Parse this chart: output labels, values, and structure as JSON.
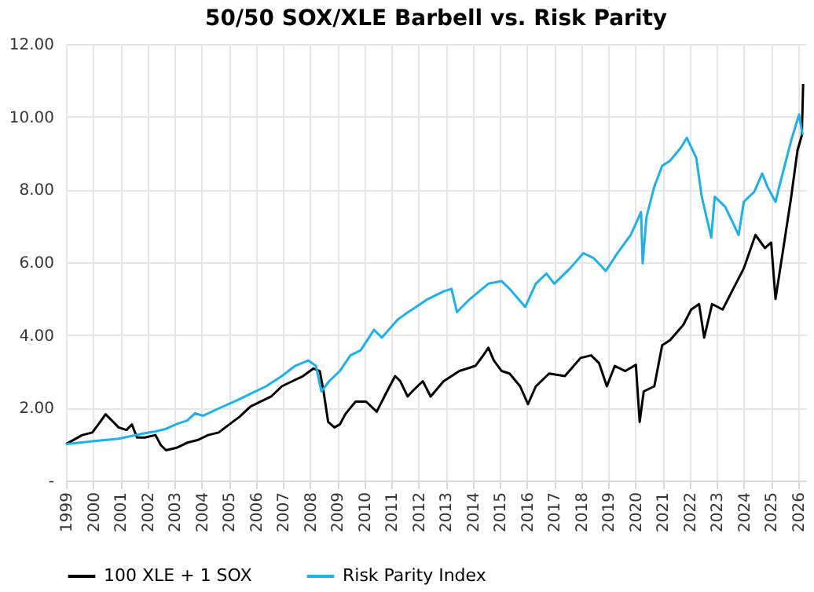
{
  "chart_data": {
    "type": "line",
    "title": "50/50 SOX/XLE Barbell vs. Risk Parity",
    "xlim": [
      1999,
      2026.3
    ],
    "xticks": [
      1999,
      2000,
      2001,
      2002,
      2003,
      2004,
      2005,
      2006,
      2007,
      2008,
      2009,
      2010,
      2011,
      2012,
      2013,
      2014,
      2015,
      2016,
      2017,
      2018,
      2019,
      2020,
      2021,
      2022,
      2023,
      2024,
      2025,
      2026
    ],
    "ylim": [
      0,
      12
    ],
    "yticks": [
      {
        "value": 0,
        "label": "-"
      },
      {
        "value": 2,
        "label": "2.00"
      },
      {
        "value": 4,
        "label": "4.00"
      },
      {
        "value": 6,
        "label": "6.00"
      },
      {
        "value": 8,
        "label": "8.00"
      },
      {
        "value": 10,
        "label": "10.00"
      },
      {
        "value": 12,
        "label": "12.00"
      }
    ],
    "grid": true,
    "legend": "bottom",
    "marker": "none",
    "line_style": "solid",
    "series": [
      {
        "name": "100 XLE + 1 SOX",
        "color": "#000000",
        "x": [
          1999.0,
          1999.6,
          1999.97,
          2000.26,
          2000.46,
          2000.65,
          2000.94,
          2001.23,
          2001.43,
          2001.62,
          2001.91,
          2002.3,
          2002.5,
          2002.69,
          2003.08,
          2003.47,
          2003.85,
          2004.24,
          2004.63,
          2005.02,
          2005.4,
          2005.8,
          2006.18,
          2006.57,
          2006.96,
          2007.35,
          2007.74,
          2008.13,
          2008.36,
          2008.5,
          2008.67,
          2008.9,
          2009.1,
          2009.3,
          2009.68,
          2010.07,
          2010.46,
          2010.84,
          2011.14,
          2011.33,
          2011.6,
          2011.77,
          2012.16,
          2012.45,
          2012.93,
          2013.51,
          2014.1,
          2014.39,
          2014.58,
          2014.78,
          2015.07,
          2015.36,
          2015.75,
          2016.04,
          2016.33,
          2016.82,
          2017.4,
          2017.98,
          2018.37,
          2018.66,
          2018.95,
          2019.24,
          2019.63,
          2020.02,
          2020.16,
          2020.31,
          2020.7,
          2020.99,
          2021.28,
          2021.77,
          2022.06,
          2022.35,
          2022.54,
          2022.83,
          2023.22,
          2023.61,
          2024.0,
          2024.43,
          2024.78,
          2025.01,
          2025.17,
          2025.46,
          2025.75,
          2025.98,
          2026.14,
          2026.19
        ],
        "values": [
          1.0,
          1.25,
          1.32,
          1.61,
          1.82,
          1.68,
          1.46,
          1.39,
          1.54,
          1.18,
          1.18,
          1.25,
          0.97,
          0.83,
          0.9,
          1.04,
          1.11,
          1.25,
          1.32,
          1.54,
          1.75,
          2.03,
          2.17,
          2.31,
          2.59,
          2.73,
          2.87,
          3.08,
          3.01,
          2.45,
          1.61,
          1.46,
          1.54,
          1.82,
          2.17,
          2.17,
          1.89,
          2.45,
          2.87,
          2.73,
          2.31,
          2.45,
          2.73,
          2.31,
          2.73,
          3.01,
          3.15,
          3.44,
          3.65,
          3.3,
          3.01,
          2.94,
          2.59,
          2.1,
          2.59,
          2.94,
          2.87,
          3.37,
          3.44,
          3.23,
          2.59,
          3.15,
          3.01,
          3.18,
          1.61,
          2.45,
          2.59,
          3.72,
          3.86,
          4.28,
          4.7,
          4.85,
          3.93,
          4.85,
          4.7,
          5.27,
          5.83,
          6.75,
          6.39,
          6.54,
          4.99,
          6.39,
          7.8,
          9.07,
          9.49,
          10.9
        ]
      },
      {
        "name": "Risk Parity Index",
        "color": "#1cb0ec",
        "x": [
          1999.0,
          1999.97,
          2000.94,
          2001.91,
          2002.3,
          2002.69,
          2003.08,
          2003.47,
          2003.76,
          2004.05,
          2004.63,
          2005.21,
          2005.8,
          2006.38,
          2006.96,
          2007.45,
          2007.93,
          2008.22,
          2008.42,
          2008.71,
          2009.1,
          2009.49,
          2009.87,
          2010.36,
          2010.65,
          2011.23,
          2011.62,
          2011.77,
          2012.35,
          2012.93,
          2013.22,
          2013.42,
          2013.9,
          2014.58,
          2015.07,
          2015.36,
          2015.94,
          2016.33,
          2016.72,
          2017.01,
          2017.59,
          2018.08,
          2018.47,
          2018.91,
          2019.34,
          2019.83,
          2020.21,
          2020.27,
          2020.41,
          2020.7,
          2020.99,
          2021.28,
          2021.67,
          2021.9,
          2022.25,
          2022.45,
          2022.8,
          2022.93,
          2023.32,
          2023.81,
          2024.0,
          2024.39,
          2024.68,
          2024.87,
          2025.17,
          2025.36,
          2025.75,
          2026.04,
          2026.17
        ],
        "values": [
          1.0,
          1.08,
          1.15,
          1.3,
          1.35,
          1.42,
          1.55,
          1.65,
          1.85,
          1.78,
          1.98,
          2.17,
          2.38,
          2.59,
          2.87,
          3.15,
          3.3,
          3.15,
          2.45,
          2.73,
          3.01,
          3.44,
          3.58,
          4.14,
          3.93,
          4.42,
          4.63,
          4.7,
          4.99,
          5.2,
          5.27,
          4.63,
          4.99,
          5.41,
          5.48,
          5.27,
          4.77,
          5.41,
          5.69,
          5.41,
          5.83,
          6.25,
          6.11,
          5.76,
          6.25,
          6.75,
          7.38,
          5.97,
          7.24,
          8.08,
          8.65,
          8.79,
          9.14,
          9.42,
          8.86,
          7.8,
          6.68,
          7.8,
          7.52,
          6.75,
          7.66,
          7.94,
          8.44,
          8.08,
          7.66,
          8.23,
          9.35,
          10.06,
          9.49
        ]
      }
    ]
  }
}
